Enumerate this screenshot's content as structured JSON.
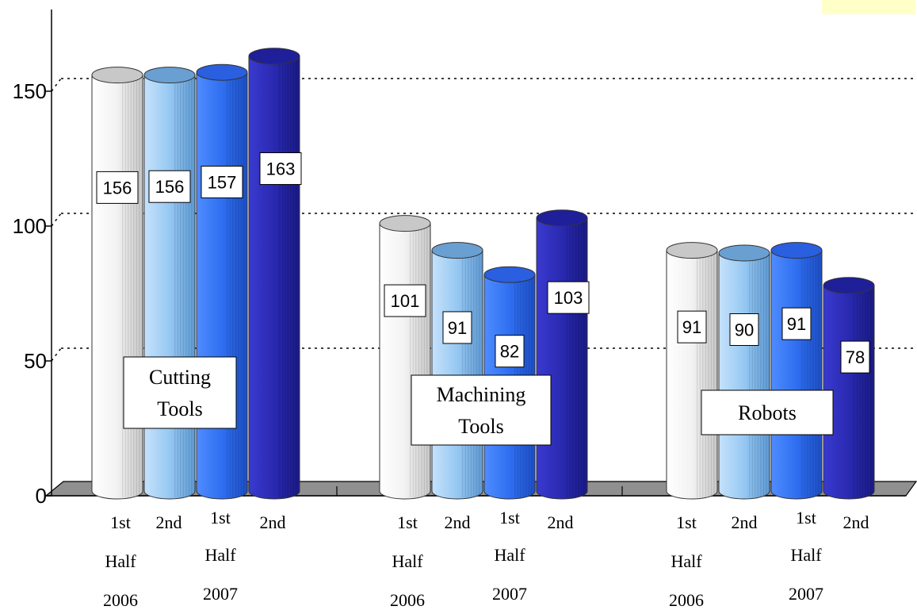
{
  "chart_data": {
    "type": "bar",
    "title": "",
    "xlabel": "",
    "ylabel": "",
    "ylim": [
      0,
      180
    ],
    "yticks": [
      "0",
      "50",
      "100",
      "150"
    ],
    "grid": "dotted horizontal lines at 50, 100, 150",
    "categories": [
      "Cutting Tools",
      "Machining Tools",
      "Robots"
    ],
    "category_labels": [
      [
        "Cutting",
        "Tools"
      ],
      [
        "Machining",
        "Tools"
      ],
      [
        "Robots"
      ]
    ],
    "period_labels": [
      [
        "1st",
        "Half",
        "2006"
      ],
      [
        "2nd"
      ],
      [
        "1st",
        "Half",
        "2007"
      ],
      [
        "2nd"
      ]
    ],
    "series": [
      {
        "period": "1st Half 2006",
        "color": "#eeeeee",
        "values": [
          156,
          101,
          91
        ]
      },
      {
        "period": "2nd Half 2006",
        "color": "#8cc0f0",
        "values": [
          156,
          91,
          90
        ]
      },
      {
        "period": "1st Half 2007",
        "color": "#2f6ff0",
        "values": [
          157,
          82,
          91
        ]
      },
      {
        "period": "2nd Half 2007",
        "color": "#2929b0",
        "values": [
          163,
          103,
          78
        ]
      }
    ]
  }
}
